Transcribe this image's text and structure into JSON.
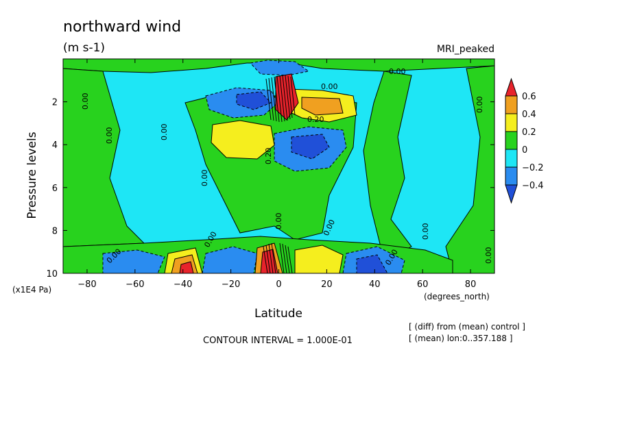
{
  "chart_data": {
    "type": "heatmap",
    "title": "northward wind",
    "units": "(m s-1)",
    "model_label": "MRI_peaked",
    "xlabel": "Latitude",
    "x_units": "(degrees_north)",
    "ylabel": "Pressure levels",
    "y_units": "(x1E4 Pa)",
    "xlim": [
      -90,
      90
    ],
    "ylim": [
      0,
      10
    ],
    "y_inverted": true,
    "x_ticks": [
      -80,
      -60,
      -40,
      -20,
      0,
      20,
      40,
      60,
      80
    ],
    "x_tick_labels": [
      "−80",
      "−60",
      "−40",
      "−20",
      "0",
      "20",
      "40",
      "60",
      "80"
    ],
    "y_ticks": [
      2,
      4,
      6,
      8,
      10
    ],
    "y_tick_labels": [
      "2",
      "4",
      "6",
      "8",
      "10"
    ],
    "contour_interval_text": "CONTOUR INTERVAL = 1.000E-01",
    "notes": [
      "[ (diff) from (mean) control ]",
      "[ (mean) lon:0..357.188 ]"
    ],
    "contour_labels": [
      "0.00",
      "0.20"
    ],
    "colorbar": {
      "levels": [
        0.6,
        0.4,
        0.2,
        0,
        -0.2,
        -0.4
      ],
      "labels": [
        "0.6",
        "0.4",
        "0.2",
        "0",
        "−0.2",
        "−0.4"
      ],
      "colors": [
        "#e8232b",
        "#f0a020",
        "#f5ee1e",
        "#28d21e",
        "#1ee6f5",
        "#2a8cf0",
        "#2050d8"
      ]
    },
    "features": [
      {
        "lat": -5,
        "p": 2.0,
        "value": -0.3
      },
      {
        "lat": 3,
        "p": 1.5,
        "value": 0.6
      },
      {
        "lat": 15,
        "p": 2.2,
        "value": 0.4
      },
      {
        "lat": -18,
        "p": 4.0,
        "value": 0.3
      },
      {
        "lat": 12,
        "p": 4.2,
        "value": -0.3
      },
      {
        "lat": -38,
        "p": 9.7,
        "value": 0.6
      },
      {
        "lat": -3,
        "p": 9.6,
        "value": 0.6
      },
      {
        "lat": 15,
        "p": 9.6,
        "value": 0.3
      },
      {
        "lat": 40,
        "p": 9.7,
        "value": -0.4
      }
    ]
  }
}
